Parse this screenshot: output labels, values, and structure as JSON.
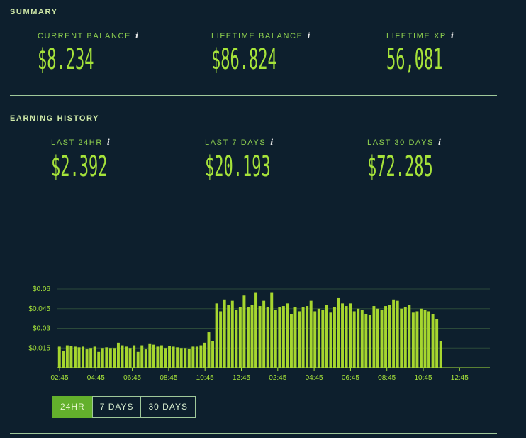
{
  "summary": {
    "title": "SUMMARY",
    "current_balance": {
      "label": "CURRENT BALANCE",
      "value": "$8.234"
    },
    "lifetime_balance": {
      "label": "LIFETIME BALANCE",
      "value": "$86.824"
    },
    "lifetime_xp": {
      "label": "LIFETIME XP",
      "value": "56,081"
    }
  },
  "earning_history": {
    "title": "EARNING HISTORY",
    "last_24hr": {
      "label": "LAST 24HR",
      "value": "$2.392"
    },
    "last_7_days": {
      "label": "LAST 7 DAYS",
      "value": "$20.193"
    },
    "last_30_days": {
      "label": "LAST 30 DAYS",
      "value": "$72.285"
    }
  },
  "info_glyph": "i",
  "range_buttons": [
    {
      "label": "24HR",
      "active": true
    },
    {
      "label": "7 DAYS",
      "active": false
    },
    {
      "label": "30 DAYS",
      "active": false
    }
  ],
  "colors": {
    "bar": "#a6d62f",
    "grid": "#2c4a3a",
    "axis": "#a6e33a"
  },
  "chart_data": {
    "type": "bar",
    "title": "",
    "xlabel": "",
    "ylabel": "",
    "ylim": [
      0,
      0.06
    ],
    "y_ticks": [
      "$0.015",
      "$0.03",
      "$0.045",
      "$0.06"
    ],
    "y_tick_values": [
      0.015,
      0.03,
      0.045,
      0.06
    ],
    "x_tick_labels": [
      "02:45",
      "04:45",
      "06:45",
      "08:45",
      "10:45",
      "12:45",
      "02:45",
      "04:45",
      "06:45",
      "08:45",
      "10:45",
      "12:45"
    ],
    "bar_slots": 110,
    "values": [
      0.016,
      0.013,
      0.017,
      0.0165,
      0.016,
      0.0155,
      0.016,
      0.014,
      0.015,
      0.016,
      0.012,
      0.015,
      0.0155,
      0.015,
      0.015,
      0.019,
      0.017,
      0.016,
      0.015,
      0.017,
      0.012,
      0.017,
      0.014,
      0.0185,
      0.0175,
      0.016,
      0.017,
      0.015,
      0.0165,
      0.016,
      0.0155,
      0.015,
      0.015,
      0.0145,
      0.016,
      0.016,
      0.017,
      0.019,
      0.027,
      0.02,
      0.049,
      0.043,
      0.052,
      0.048,
      0.051,
      0.044,
      0.046,
      0.055,
      0.046,
      0.048,
      0.057,
      0.047,
      0.051,
      0.046,
      0.057,
      0.044,
      0.046,
      0.047,
      0.049,
      0.041,
      0.046,
      0.043,
      0.046,
      0.047,
      0.051,
      0.043,
      0.045,
      0.044,
      0.048,
      0.042,
      0.046,
      0.053,
      0.049,
      0.047,
      0.049,
      0.043,
      0.045,
      0.044,
      0.041,
      0.04,
      0.047,
      0.045,
      0.044,
      0.047,
      0.048,
      0.052,
      0.051,
      0.045,
      0.046,
      0.048,
      0.042,
      0.043,
      0.045,
      0.044,
      0.043,
      0.041,
      0.037,
      0.02
    ]
  }
}
